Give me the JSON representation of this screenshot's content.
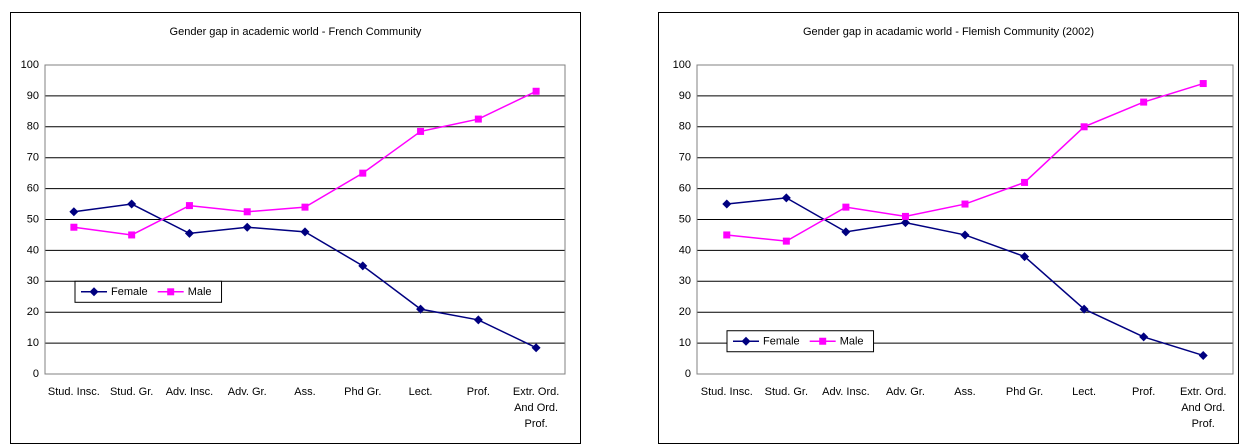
{
  "chart_data": [
    {
      "type": "line",
      "title": "Gender gap in academic world - French Community",
      "categories": [
        "Stud. Insc.",
        "Stud. Gr.",
        "Adv. Insc.",
        "Adv. Gr.",
        "Ass.",
        "Phd Gr.",
        "Lect.",
        "Prof.",
        "Extr. Ord. And Ord. Prof."
      ],
      "series": [
        {
          "name": "Female",
          "color": "#000080",
          "marker": "diamond",
          "values": [
            52.5,
            55,
            45.5,
            47.5,
            46,
            35,
            21,
            17.5,
            8.5
          ]
        },
        {
          "name": "Male",
          "color": "#ff00ff",
          "marker": "square",
          "values": [
            47.5,
            45,
            54.5,
            52.5,
            54,
            65,
            78.5,
            82.5,
            91.5
          ]
        }
      ],
      "ylim": [
        0,
        100
      ],
      "yticks": [
        0,
        10,
        20,
        30,
        40,
        50,
        60,
        70,
        80,
        90,
        100
      ],
      "grid": true,
      "legend_position": "center left"
    },
    {
      "type": "line",
      "title": "Gender gap in acadamic world - Flemish Community (2002)",
      "categories": [
        "Stud. Insc.",
        "Stud. Gr.",
        "Adv. Insc.",
        "Adv. Gr.",
        "Ass.",
        "Phd Gr.",
        "Lect.",
        "Prof.",
        "Extr. Ord. And Ord. Prof."
      ],
      "series": [
        {
          "name": "Female",
          "color": "#000080",
          "marker": "diamond",
          "values": [
            55,
            57,
            46,
            49,
            45,
            38,
            21,
            12,
            6
          ]
        },
        {
          "name": "Male",
          "color": "#ff00ff",
          "marker": "square",
          "values": [
            45,
            43,
            54,
            51,
            55,
            62,
            80,
            88,
            94
          ]
        }
      ],
      "ylim": [
        0,
        100
      ],
      "yticks": [
        0,
        10,
        20,
        30,
        40,
        50,
        60,
        70,
        80,
        90,
        100
      ],
      "grid": true,
      "legend_position": "lower left"
    }
  ]
}
